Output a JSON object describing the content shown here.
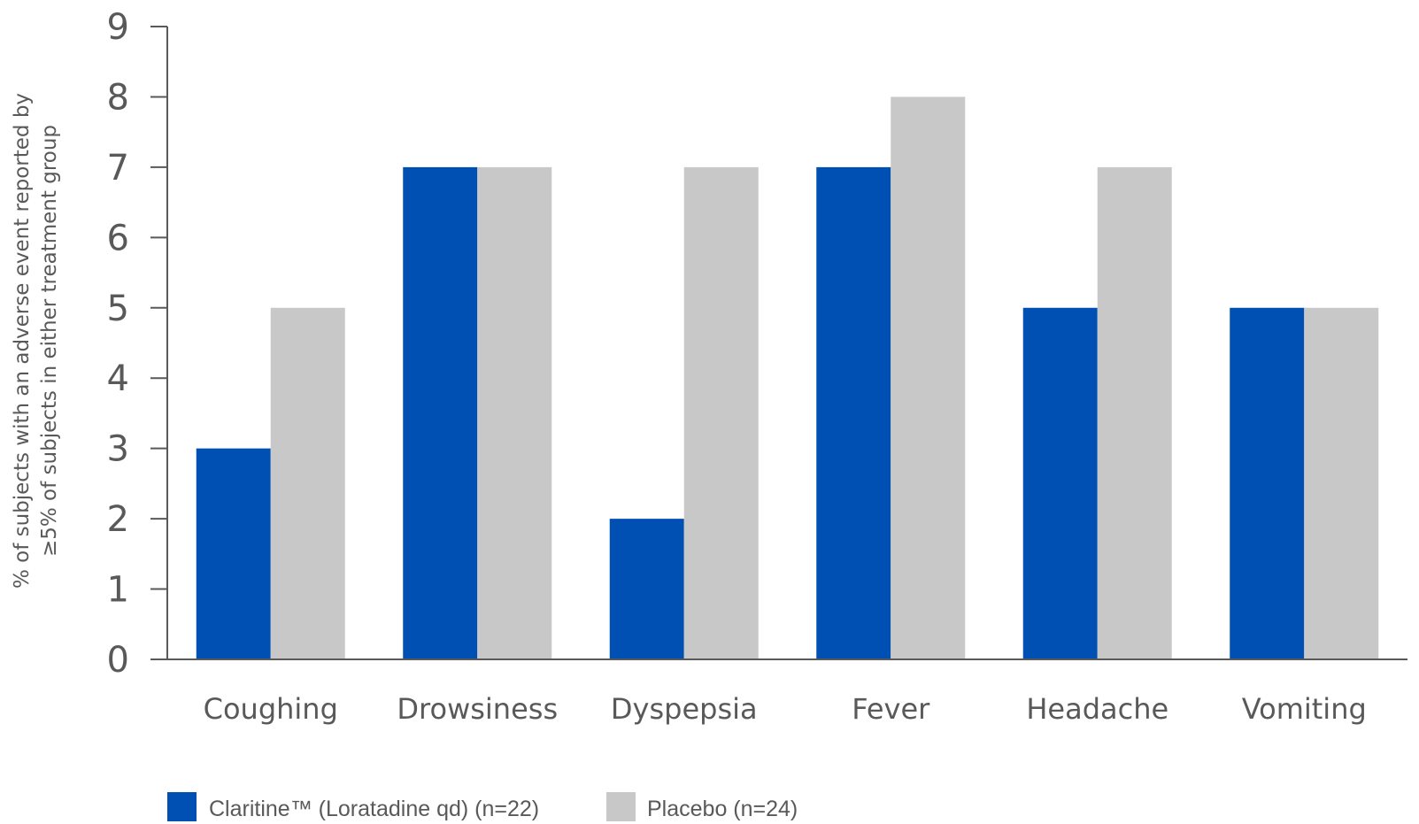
{
  "chart_data": {
    "type": "bar",
    "categories": [
      "Coughing",
      "Drowsiness",
      "Dyspepsia",
      "Fever",
      "Headache",
      "Vomiting"
    ],
    "series": [
      {
        "name": "Claritine™  (Loratadine qd) (n=22)",
        "values": [
          3,
          7,
          2,
          7,
          5,
          5
        ],
        "color": "#0050B4"
      },
      {
        "name": "Placebo (n=24)",
        "values": [
          5,
          7,
          7,
          8,
          7,
          5
        ],
        "color": "#C8C8C8"
      }
    ],
    "ylabel_lines": [
      "% of subjects with an adverse event reported by",
      "≥5% of subjects in either treatment group"
    ],
    "ylim": [
      0,
      9
    ],
    "yticks": [
      "0",
      "1",
      "2",
      "3",
      "4",
      "5",
      "6",
      "7",
      "8",
      "9"
    ],
    "grid": false,
    "legend_position": "bottom-left",
    "axis_color": "#595959",
    "text_color": "#595959"
  }
}
